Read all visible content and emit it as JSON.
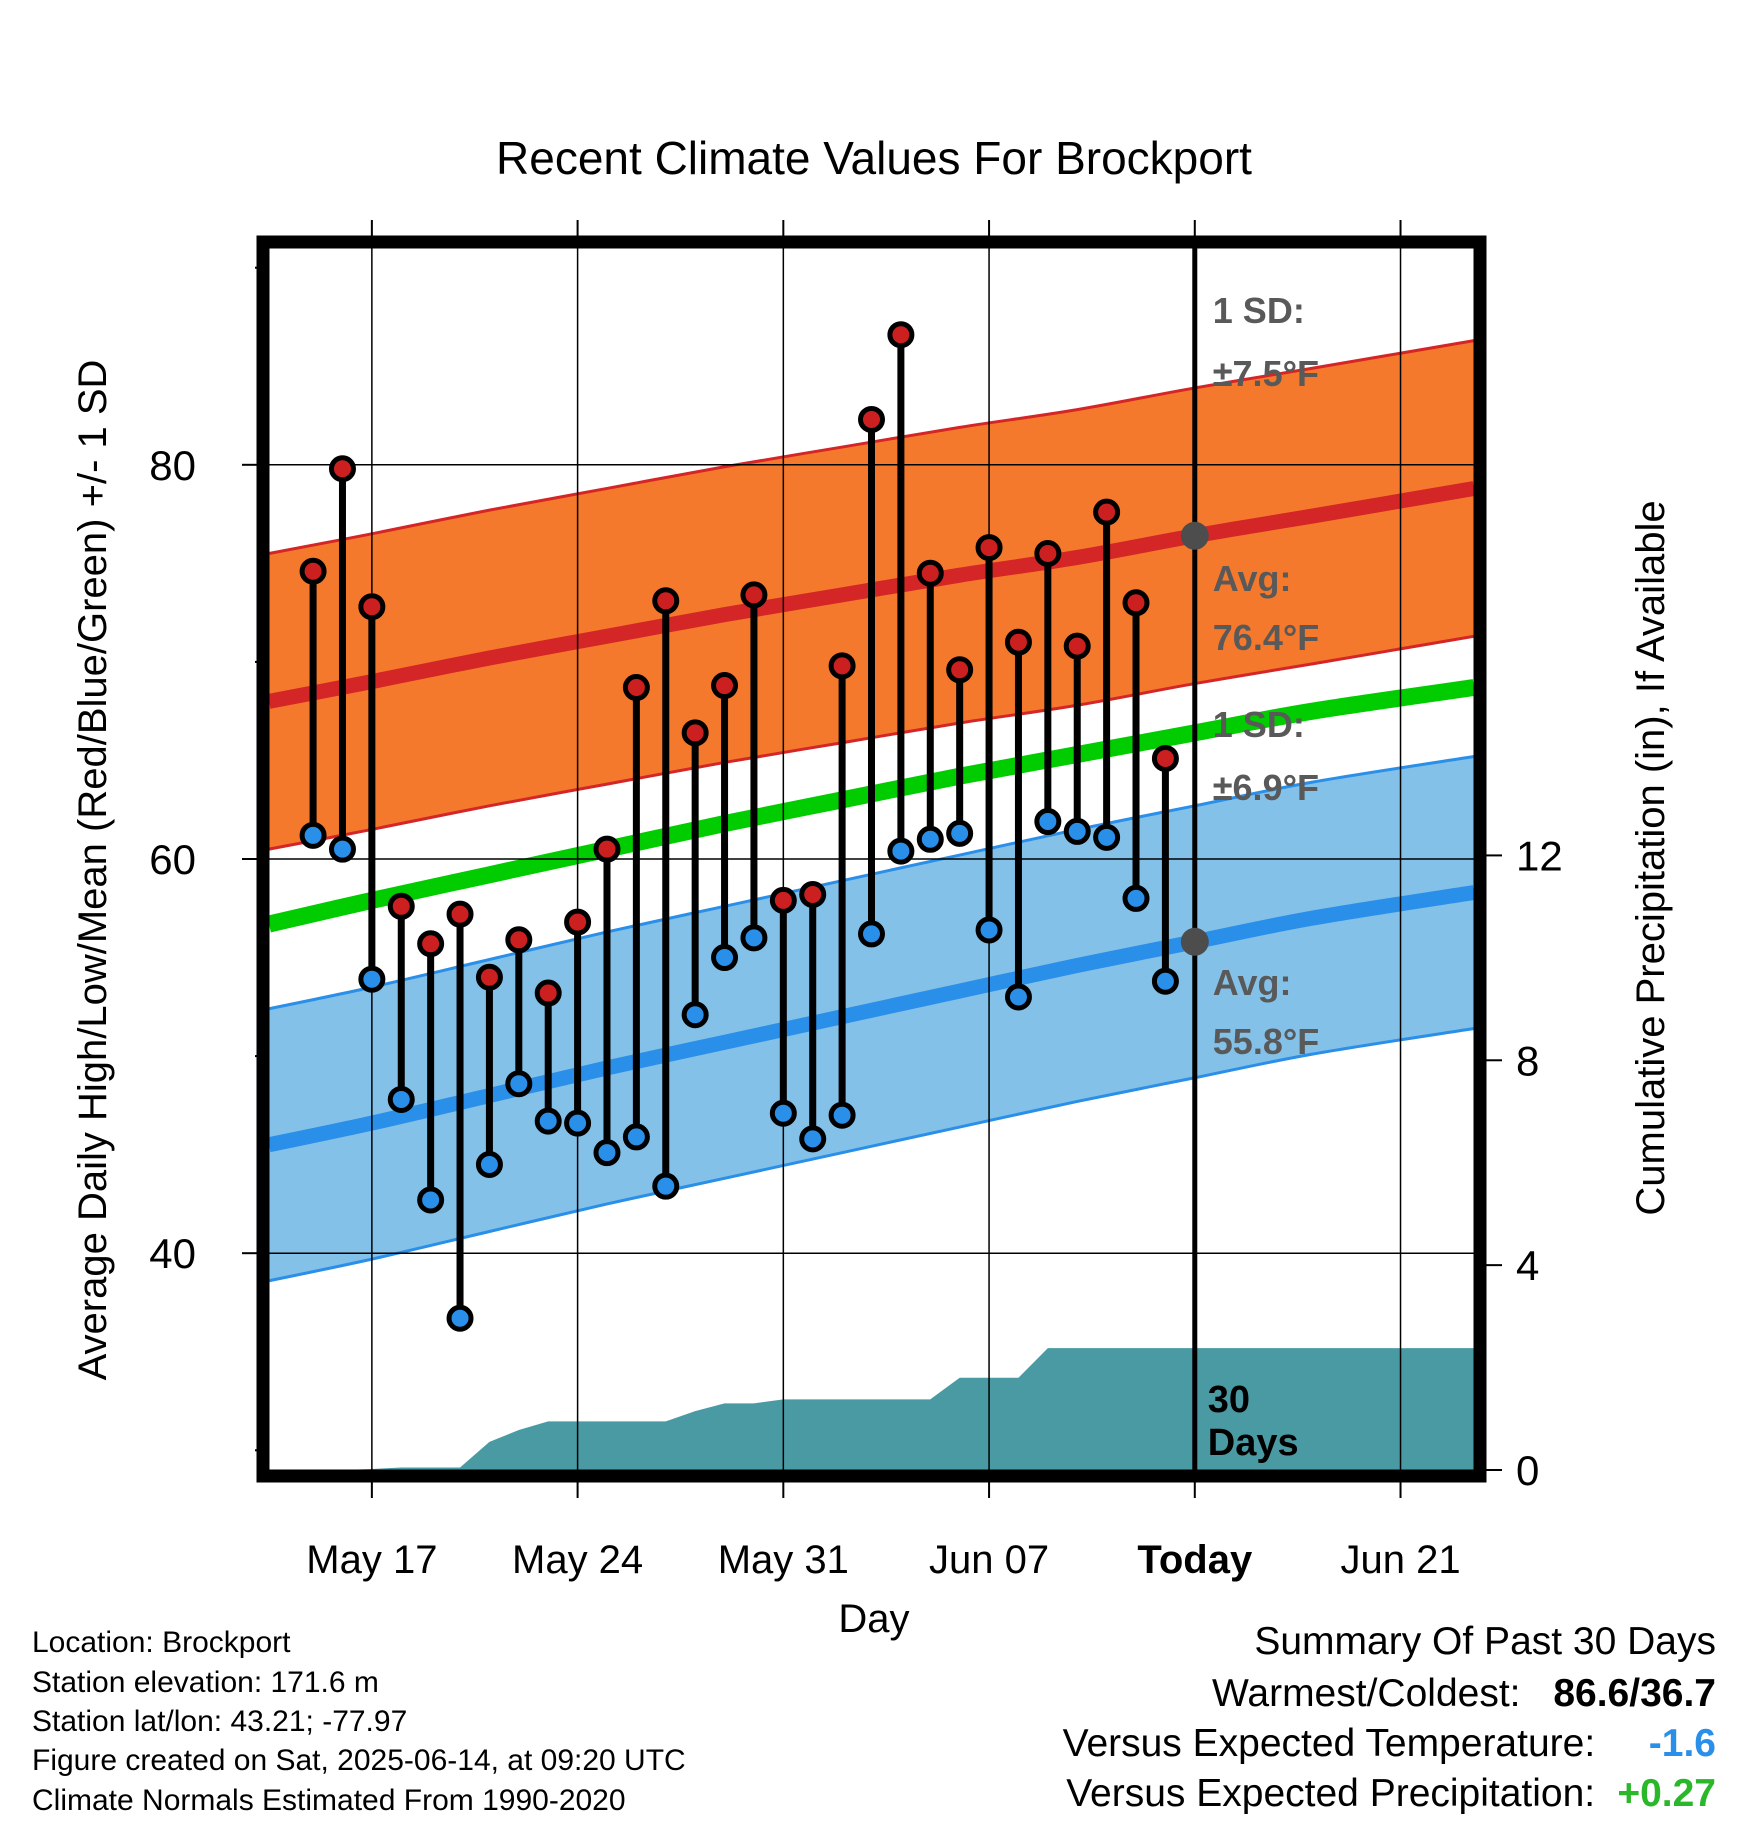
{
  "chart_data": {
    "type": "line",
    "title": "Recent Climate Values For Brockport",
    "xlabel": "Day",
    "ylabel_left": "Average Daily High/Low/Mean (Red/Blue/Green) +/- 1 SD",
    "ylabel_right": "Cumulative Precipitation (in), If Available",
    "x_ticks": [
      "May 17",
      "May 24",
      "May 31",
      "Jun 07",
      "Today",
      "Jun 21"
    ],
    "x_range_days": [
      -17.5,
      23.5
    ],
    "today_day": 14,
    "today_label": "30 Days",
    "y_left_range": [
      29,
      91
    ],
    "y_left_ticks": [
      40,
      60,
      80
    ],
    "y_right_range": [
      0,
      23.86
    ],
    "y_right_ticks": [
      0,
      4,
      8,
      12
    ],
    "grid": true,
    "colors": {
      "high_band": "#f5792c",
      "high_band_edge": "#d42626",
      "high_avg": "#d42626",
      "low_band": "#84c1e8",
      "low_band_edge": "#2a8fe8",
      "low_avg": "#2a8fe8",
      "mean": "#00cc00",
      "precip": "#4a9aa4",
      "high_marker": "#cc2020",
      "low_marker": "#2a8fe8",
      "annotation": "#595959"
    },
    "normals": {
      "days": [
        -17,
        -14,
        -10,
        -6,
        -2,
        2,
        6,
        10,
        14,
        18,
        23
      ],
      "high_avg": [
        68.0,
        69.0,
        70.2,
        71.3,
        72.4,
        73.4,
        74.4,
        75.3,
        76.4,
        77.4,
        78.8
      ],
      "high_sd": 7.5,
      "low_avg": [
        45.5,
        46.6,
        48.0,
        49.4,
        50.7,
        52.0,
        53.3,
        54.6,
        55.8,
        57.0,
        58.3
      ],
      "low_sd": 6.9,
      "mean_avg": [
        56.7,
        57.9,
        59.2,
        60.5,
        61.8,
        63.0,
        64.2,
        65.3,
        66.4,
        67.5,
        68.7
      ]
    },
    "series": [
      {
        "name": "High",
        "days": [
          -16,
          -15,
          -14,
          -13,
          -12,
          -11,
          -10,
          -9,
          -8,
          -7,
          -6,
          -5,
          -4,
          -3,
          -2,
          -1,
          0,
          1,
          2,
          3,
          4,
          5,
          6,
          7,
          8,
          9,
          10,
          11,
          12,
          13
        ],
        "values": [
          74.6,
          79.8,
          72.8,
          57.6,
          55.7,
          57.2,
          54.0,
          55.9,
          53.2,
          56.8,
          60.5,
          68.7,
          73.1,
          66.4,
          68.8,
          73.4,
          57.9,
          58.2,
          69.8,
          82.3,
          86.6,
          74.5,
          69.6,
          75.8,
          71.0,
          75.5,
          70.8,
          77.6,
          73.0,
          65.1
        ]
      },
      {
        "name": "Low",
        "days": [
          -16,
          -15,
          -14,
          -13,
          -12,
          -11,
          -10,
          -9,
          -8,
          -7,
          -6,
          -5,
          -4,
          -3,
          -2,
          -1,
          0,
          1,
          2,
          3,
          4,
          5,
          6,
          7,
          8,
          9,
          10,
          11,
          12,
          13
        ],
        "values": [
          61.2,
          60.5,
          53.9,
          47.8,
          42.7,
          36.7,
          44.5,
          48.6,
          46.7,
          46.6,
          45.1,
          45.9,
          43.4,
          52.1,
          55.0,
          56.0,
          47.1,
          45.8,
          47.0,
          56.2,
          60.4,
          61.0,
          61.3,
          56.4,
          53.0,
          61.9,
          61.4,
          61.1,
          58.0,
          53.8
        ]
      },
      {
        "name": "Cumulative Precipitation",
        "days": [
          -17,
          -16,
          -15,
          -14,
          -13,
          -12,
          -11,
          -10,
          -9,
          -8,
          -7,
          -6,
          -5,
          -4,
          -3,
          -2,
          -1,
          0,
          1,
          2,
          3,
          4,
          5,
          6,
          7,
          8,
          9,
          10,
          11,
          12,
          13,
          14,
          23.5
        ],
        "values": [
          0,
          0,
          0,
          0.02,
          0.05,
          0.05,
          0.05,
          0.55,
          0.78,
          0.95,
          0.95,
          0.95,
          0.95,
          0.95,
          1.15,
          1.3,
          1.3,
          1.38,
          1.38,
          1.38,
          1.38,
          1.38,
          1.38,
          1.8,
          1.8,
          1.8,
          2.38,
          2.38,
          2.38,
          2.38,
          2.38,
          2.38,
          2.38
        ]
      }
    ],
    "annotations": {
      "high_sd_label": "1 SD:",
      "high_sd_value": "±7.5°F",
      "high_avg_label": "Avg:",
      "high_avg_value": "76.4°F",
      "low_sd_label": "1 SD:",
      "low_sd_value": "±6.9°F",
      "low_avg_label": "Avg:",
      "low_avg_value": "55.8°F"
    }
  },
  "info": {
    "location": "Location: Brockport",
    "elevation": "Station elevation: 171.6 m",
    "latlon": "Station lat/lon: 43.21; -77.97",
    "created": "Figure created on Sat, 2025-06-14, at 09:20 UTC",
    "normals": "Climate Normals Estimated From 1990-2020"
  },
  "summary": {
    "title": "Summary Of Past 30 Days",
    "warm_cold_label": "Warmest/Coldest:",
    "warm_cold_value": "86.6/36.7",
    "temp_label": "Versus Expected Temperature:",
    "temp_value": "-1.6",
    "precip_label": "Versus Expected Precipitation:",
    "precip_value": "+0.27",
    "temp_value_color": "#2a8fe8",
    "precip_value_color": "#2ab82a"
  }
}
